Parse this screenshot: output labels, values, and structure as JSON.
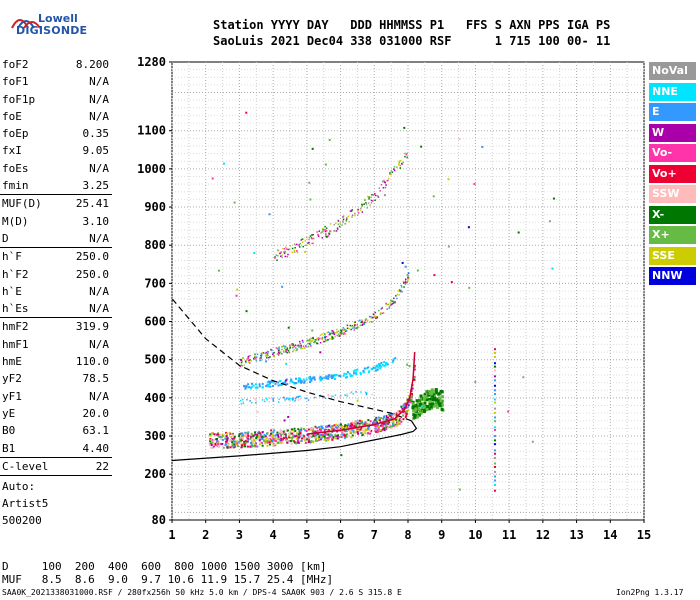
{
  "logo": {
    "line1": "Lowell",
    "line2": "DIGISONDE"
  },
  "header": {
    "line1": "Station YYYY DAY   DDD HHMMSS P1   FFS S AXN PPS IGA PS",
    "line2": "SaoLuis 2021 Dec04 338 031000 RSF      1 715 100 00- 11"
  },
  "params": [
    {
      "label": "foF2",
      "value": "8.200"
    },
    {
      "label": "foF1",
      "value": "N/A"
    },
    {
      "label": "foF1p",
      "value": "N/A"
    },
    {
      "label": "foE",
      "value": "N/A"
    },
    {
      "label": "foEp",
      "value": "0.35"
    },
    {
      "label": "fxI",
      "value": "9.05"
    },
    {
      "label": "foEs",
      "value": "N/A"
    },
    {
      "label": "fmin",
      "value": "3.25"
    },
    {
      "label": "MUF(D)",
      "value": "25.41"
    },
    {
      "label": "M(D)",
      "value": "3.10"
    },
    {
      "label": "D",
      "value": "N/A"
    },
    {
      "label": "h`F",
      "value": "250.0"
    },
    {
      "label": "h`F2",
      "value": "250.0"
    },
    {
      "label": "h`E",
      "value": "N/A"
    },
    {
      "label": "h`Es",
      "value": "N/A"
    },
    {
      "label": "hmF2",
      "value": "319.9"
    },
    {
      "label": "hmF1",
      "value": "N/A"
    },
    {
      "label": "hmE",
      "value": "110.0"
    },
    {
      "label": "yF2",
      "value": "78.5"
    },
    {
      "label": "yF1",
      "value": "N/A"
    },
    {
      "label": "yE",
      "value": "20.0"
    },
    {
      "label": "B0",
      "value": "63.1"
    },
    {
      "label": "B1",
      "value": "4.40"
    },
    {
      "label": "C-level",
      "value": "22"
    }
  ],
  "auto": {
    "line1": "Auto:",
    "line2": "Artist5",
    "line3": "500200"
  },
  "legend": [
    {
      "label": "NoVal",
      "color": "#999999"
    },
    {
      "label": "NNE",
      "color": "#00e5ff"
    },
    {
      "label": "E",
      "color": "#3399ff"
    },
    {
      "label": "W",
      "color": "#aa00aa"
    },
    {
      "label": "Vo-",
      "color": "#ff33aa"
    },
    {
      "label": "Vo+",
      "color": "#ee0033"
    },
    {
      "label": "SSW",
      "color": "#ffbbbb"
    },
    {
      "label": "X-",
      "color": "#007700"
    },
    {
      "label": "X+",
      "color": "#66bb44"
    },
    {
      "label": "SSE",
      "color": "#cccc00"
    },
    {
      "label": "NNW",
      "color": "#0000dd"
    }
  ],
  "footer": {
    "d_line": "D     100  200  400  600  800 1000 1500 3000 [km]",
    "muf_line": "MUF   8.5  8.6  9.0  9.7 10.6 11.9 15.7 25.4 [MHz]",
    "file_line": "SAA0K_2021338031000.RSF / 280fx256h 50 kHz 5.0 km / DPS-4 SAA0K 903 / 2.6 S 315.8 E",
    "version": "Ion2Png 1.3.17"
  },
  "chart_data": {
    "type": "scatter",
    "xlim": [
      1,
      15
    ],
    "ylim": [
      80,
      1280
    ],
    "x_ticks": [
      "1",
      "2",
      "3",
      "4",
      "5",
      "6",
      "7",
      "8",
      "9",
      "10",
      "11",
      "12",
      "13",
      "14",
      "15"
    ],
    "y_ticks": [
      "80",
      "200",
      "300",
      "400",
      "500",
      "600",
      "700",
      "800",
      "900",
      "1000",
      "1100",
      "1280"
    ],
    "grid": true,
    "trace_o_mode": [
      [
        2.1,
        290
      ],
      [
        3,
        292
      ],
      [
        4,
        298
      ],
      [
        5,
        305
      ],
      [
        6,
        315
      ],
      [
        7,
        330
      ],
      [
        7.6,
        345
      ],
      [
        7.9,
        370
      ],
      [
        8.05,
        400
      ],
      [
        8.15,
        450
      ],
      [
        8.2,
        520
      ]
    ],
    "trace_x_mode": [
      [
        8.1,
        370
      ],
      [
        8.4,
        390
      ],
      [
        8.6,
        400
      ],
      [
        8.8,
        405
      ],
      [
        9.0,
        395
      ]
    ],
    "trace_e_mode": [
      [
        3,
        430
      ],
      [
        4,
        440
      ],
      [
        5,
        450
      ],
      [
        6,
        460
      ],
      [
        7,
        480
      ],
      [
        7.6,
        505
      ]
    ],
    "trace_e_mode_2": [
      [
        3,
        392
      ],
      [
        4,
        396
      ],
      [
        5,
        402
      ],
      [
        6,
        408
      ],
      [
        7,
        418
      ]
    ],
    "trace_multi_2": [
      [
        3,
        495
      ],
      [
        4,
        520
      ],
      [
        5,
        545
      ],
      [
        6,
        575
      ],
      [
        7,
        615
      ],
      [
        7.6,
        660
      ],
      [
        8,
        720
      ]
    ],
    "trace_multi_3": [
      [
        4,
        770
      ],
      [
        5,
        810
      ],
      [
        6,
        860
      ],
      [
        7,
        930
      ],
      [
        7.6,
        995
      ],
      [
        8,
        1050
      ]
    ],
    "profile_curve": [
      [
        1,
        236
      ],
      [
        3,
        248
      ],
      [
        5,
        262
      ],
      [
        6,
        272
      ],
      [
        7,
        290
      ],
      [
        7.8,
        304
      ],
      [
        8.15,
        312
      ],
      [
        8.25,
        320
      ],
      [
        8.1,
        340
      ],
      [
        7.5,
        360
      ],
      [
        6,
        390
      ],
      [
        5,
        415
      ],
      [
        4,
        445
      ],
      [
        3,
        485
      ],
      [
        2,
        555
      ],
      [
        1,
        660
      ]
    ]
  }
}
